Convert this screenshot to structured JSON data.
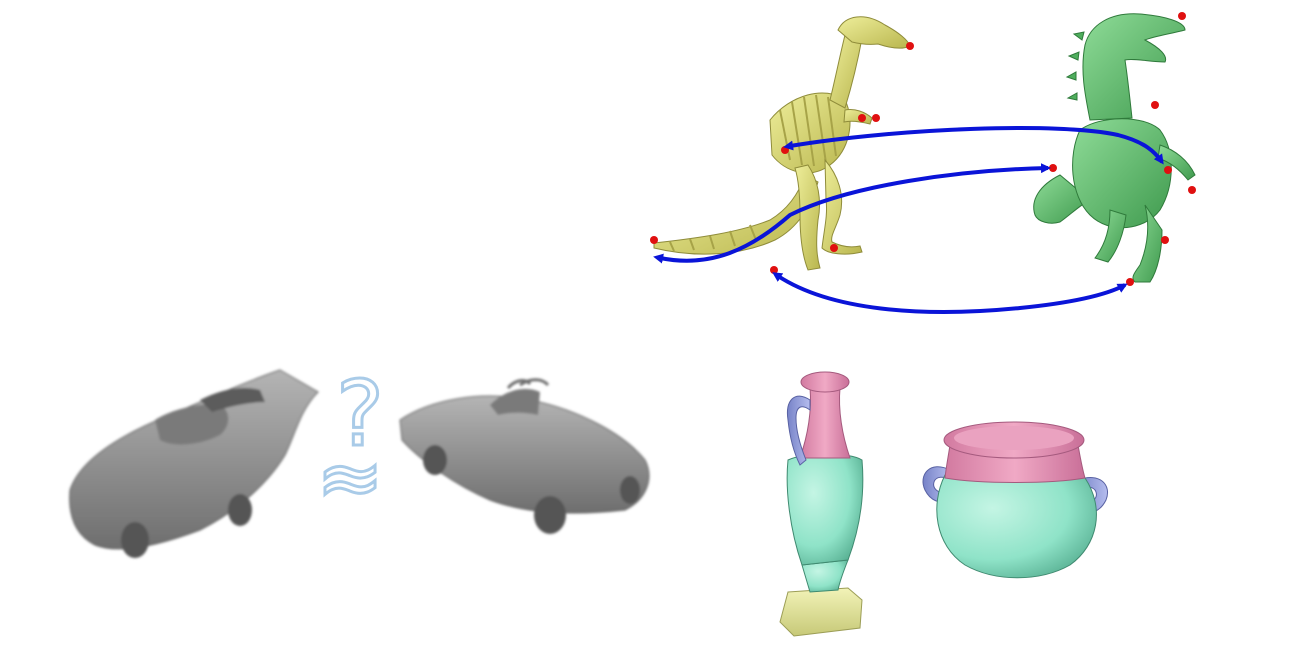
{
  "panels": {
    "dinosaur_correspondence": {
      "left_model": "skeleton-dinosaur",
      "right_model": "green-trex",
      "left_color": "#d9d97a",
      "right_color": "#6fc37a",
      "feature_point_color": "#e01010",
      "arrow_color": "#0a14d8",
      "correspondences": 3
    },
    "car_similarity": {
      "question_glyph": "?",
      "similarity_glyph": "≈",
      "glyph_color": "#a9cbe8",
      "car_color": "#8a8a8a"
    },
    "vase_segmentation": {
      "segment_colors": {
        "neck_rim": "#e596b4",
        "handle": "#9aa6e0",
        "body": "#8fe3c8",
        "base": "#e9eb9e"
      }
    }
  }
}
